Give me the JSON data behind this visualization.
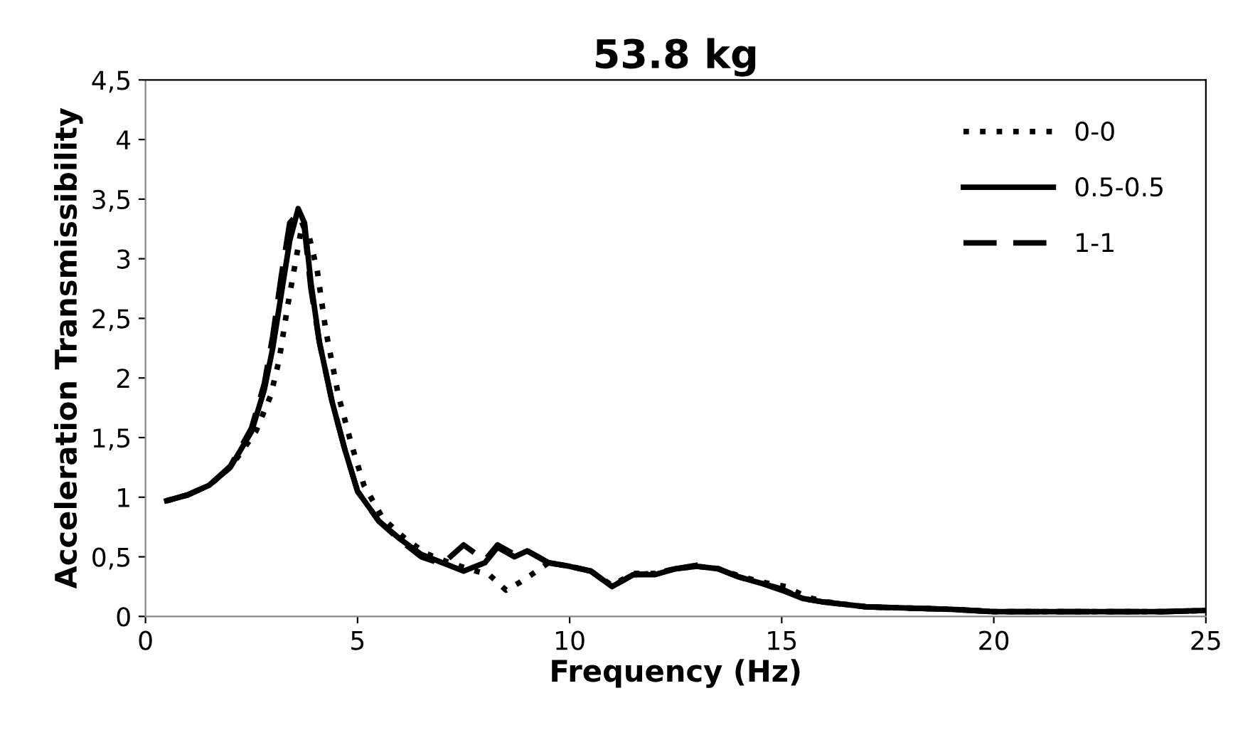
{
  "chart_data": {
    "type": "line",
    "title": "53.8 kg",
    "xlabel": "Frequency (Hz)",
    "ylabel": "Acceleration Transmissibility",
    "x": [
      0.5,
      1,
      1.5,
      2,
      2.5,
      2.8,
      3,
      3.2,
      3.4,
      3.6,
      3.75,
      3.9,
      4.1,
      4.4,
      4.7,
      5,
      5.5,
      6,
      6.5,
      7,
      7.5,
      8,
      8.3,
      8.7,
      9,
      9.5,
      10,
      10.5,
      11,
      11.5,
      12,
      12.5,
      13,
      13.5,
      14,
      14.5,
      15,
      15.5,
      16,
      17,
      18,
      19,
      20,
      21,
      22,
      23,
      24,
      25
    ],
    "series": [
      {
        "name": "0-0",
        "color": "#000000",
        "line_style": "dotted",
        "x": [
          0.5,
          1,
          1.5,
          2,
          2.6,
          2.95,
          3.15,
          3.35,
          3.55,
          3.7,
          3.85,
          4.05,
          4.25,
          4.55,
          4.85,
          5.15,
          5.6,
          6.1,
          6.6,
          7.1,
          7.6,
          8.1,
          8.5,
          8.8,
          9.1,
          9.5,
          10,
          10.5,
          11,
          11.5,
          12,
          12.5,
          13,
          13.5,
          14,
          14.5,
          15.1,
          15.6,
          16.1,
          17,
          18,
          19,
          20,
          21,
          22,
          23,
          24,
          25
        ],
        "values": [
          0.97,
          1.02,
          1.1,
          1.25,
          1.55,
          1.85,
          2.15,
          2.6,
          3.0,
          3.3,
          3.2,
          2.9,
          2.4,
          1.85,
          1.45,
          1.1,
          0.82,
          0.66,
          0.53,
          0.46,
          0.4,
          0.35,
          0.22,
          0.28,
          0.35,
          0.45,
          0.42,
          0.38,
          0.26,
          0.36,
          0.36,
          0.4,
          0.42,
          0.4,
          0.34,
          0.29,
          0.25,
          0.16,
          0.12,
          0.08,
          0.07,
          0.06,
          0.04,
          0.04,
          0.04,
          0.04,
          0.04,
          0.05
        ]
      },
      {
        "name": "0.5-0.5",
        "color": "#000000",
        "line_style": "solid",
        "values": [
          0.97,
          1.02,
          1.1,
          1.25,
          1.55,
          1.9,
          2.25,
          2.7,
          3.15,
          3.42,
          3.3,
          2.8,
          2.3,
          1.8,
          1.4,
          1.05,
          0.8,
          0.65,
          0.52,
          0.45,
          0.38,
          0.45,
          0.58,
          0.5,
          0.55,
          0.45,
          0.42,
          0.38,
          0.25,
          0.35,
          0.35,
          0.4,
          0.42,
          0.4,
          0.33,
          0.28,
          0.22,
          0.15,
          0.12,
          0.08,
          0.07,
          0.06,
          0.04,
          0.04,
          0.04,
          0.04,
          0.04,
          0.05
        ]
      },
      {
        "name": "1-1",
        "color": "#000000",
        "line_style": "dashed",
        "values": [
          0.97,
          1.02,
          1.1,
          1.26,
          1.58,
          1.95,
          2.35,
          2.85,
          3.3,
          3.38,
          3.25,
          2.75,
          2.3,
          1.8,
          1.4,
          1.05,
          0.8,
          0.64,
          0.5,
          0.44,
          0.6,
          0.47,
          0.6,
          0.52,
          0.55,
          0.45,
          0.42,
          0.38,
          0.25,
          0.35,
          0.36,
          0.4,
          0.43,
          0.4,
          0.33,
          0.28,
          0.23,
          0.15,
          0.12,
          0.08,
          0.07,
          0.06,
          0.04,
          0.04,
          0.04,
          0.04,
          0.04,
          0.05
        ]
      }
    ],
    "xlim": [
      0,
      25
    ],
    "xticks": [
      0,
      5,
      10,
      15,
      20,
      25
    ],
    "ylim": [
      0,
      4.5
    ],
    "yticks": [
      0,
      {
        "value": 0.5,
        "label": "0,5"
      },
      1,
      {
        "value": 1.5,
        "label": "1,5"
      },
      2,
      {
        "value": 2.5,
        "label": "2,5"
      },
      3,
      {
        "value": 3.5,
        "label": "3,5"
      },
      4,
      {
        "value": 4.5,
        "label": "4,5"
      }
    ],
    "grid": false,
    "legend": "top right",
    "marker": "none"
  }
}
